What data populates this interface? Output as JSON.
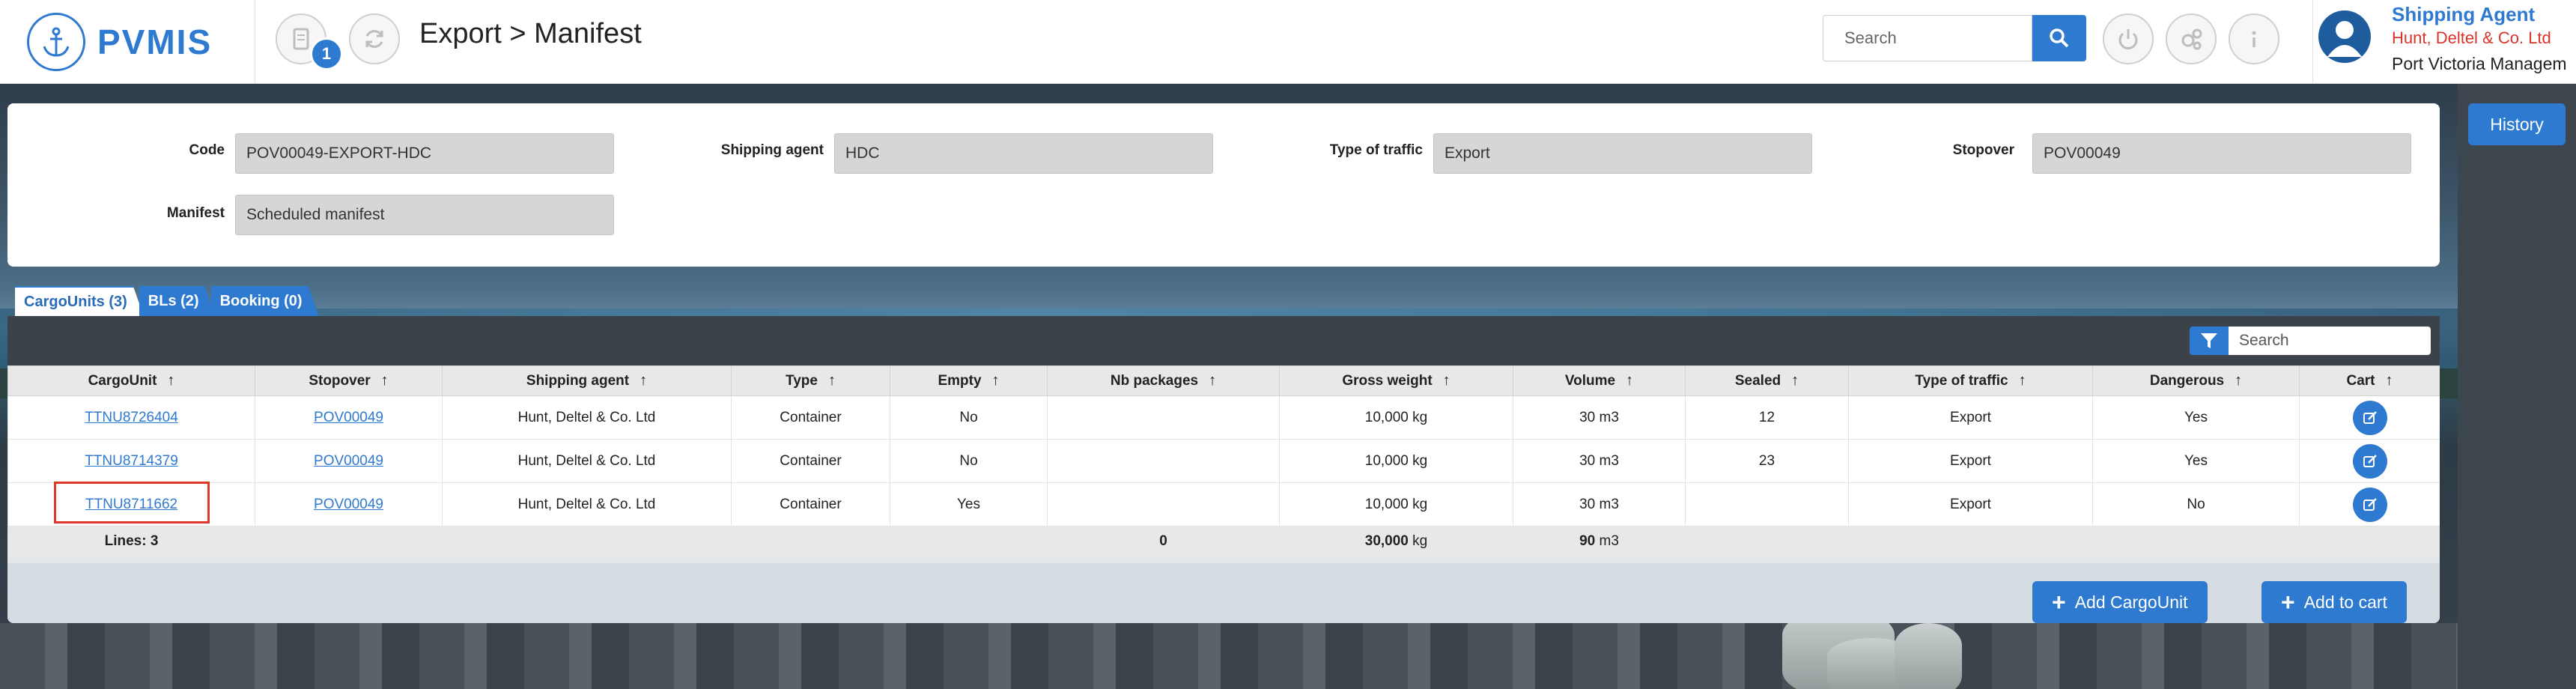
{
  "app": {
    "brand": "PVMIS"
  },
  "header": {
    "notification_count": "1",
    "page_title": "Export > Manifest",
    "search_placeholder": "Search"
  },
  "user": {
    "role": "Shipping Agent",
    "company": "Hunt, Deltel & Co. Ltd",
    "organization": "Port Victoria Managem"
  },
  "side": {
    "history_label": "History"
  },
  "manifest": {
    "fields": [
      {
        "label": "Code",
        "value": "POV00049-EXPORT-HDC"
      },
      {
        "label": "Shipping agent",
        "value": "HDC"
      },
      {
        "label": "Type of traffic",
        "value": "Export"
      },
      {
        "label": "Stopover",
        "value": "POV00049"
      },
      {
        "label": "Manifest",
        "value": "Scheduled manifest"
      }
    ]
  },
  "tabs": [
    {
      "label": "CargoUnits (3)",
      "active": true
    },
    {
      "label": "BLs (2)",
      "active": false
    },
    {
      "label": "Booking (0)",
      "active": false
    }
  ],
  "grid": {
    "search_placeholder": "Search",
    "sort_arrow": "↑",
    "columns": [
      "CargoUnit",
      "Stopover",
      "Shipping agent",
      "Type",
      "Empty",
      "Nb packages",
      "Gross weight",
      "Volume",
      "Sealed",
      "Type of traffic",
      "Dangerous",
      "Cart"
    ],
    "rows": [
      {
        "cargo_unit": "TTNU8726404",
        "stopover": "POV00049",
        "shipping_agent": "Hunt, Deltel & Co. Ltd",
        "type": "Container",
        "empty": "No",
        "nb_packages": "",
        "gross_weight": "10,000 kg",
        "volume": "30 m3",
        "sealed": "12",
        "traffic": "Export",
        "dangerous": "Yes"
      },
      {
        "cargo_unit": "TTNU8714379",
        "stopover": "POV00049",
        "shipping_agent": "Hunt, Deltel & Co. Ltd",
        "type": "Container",
        "empty": "No",
        "nb_packages": "",
        "gross_weight": "10,000 kg",
        "volume": "30 m3",
        "sealed": "23",
        "traffic": "Export",
        "dangerous": "Yes"
      },
      {
        "cargo_unit": "TTNU8711662",
        "stopover": "POV00049",
        "shipping_agent": "Hunt, Deltel & Co. Ltd",
        "type": "Container",
        "empty": "Yes",
        "nb_packages": "",
        "gross_weight": "10,000 kg",
        "volume": "30 m3",
        "sealed": "",
        "traffic": "Export",
        "dangerous": "No"
      }
    ],
    "footer": {
      "lines": "Lines: 3",
      "nb_packages_total": "0",
      "gross_weight_total": "30,000",
      "gross_weight_unit": "kg",
      "volume_total": "90",
      "volume_unit": "m3"
    },
    "actions": {
      "add_cargo_unit": "Add CargoUnit",
      "add_to_cart": "Add to cart"
    }
  },
  "colors": {
    "accent": "#2f7ad1",
    "danger": "#d9342b",
    "highlight": "#e0362c"
  }
}
